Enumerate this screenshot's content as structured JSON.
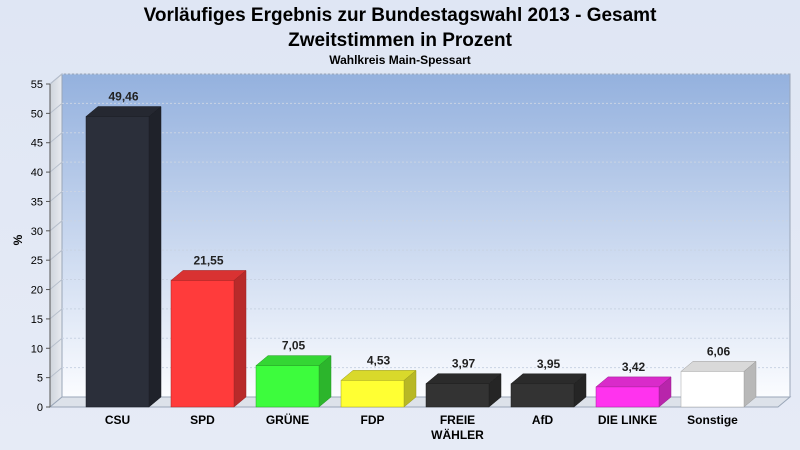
{
  "chart_data": {
    "type": "bar",
    "title": "Vorläufiges Ergebnis zur Bundestagswahl 2013 - Gesamt",
    "title_line2": "Zweitstimmen in Prozent",
    "subtitle": "Wahlkreis Main-Spessart",
    "ylabel": "%",
    "xlabel": "",
    "ylim": [
      0,
      55
    ],
    "yticks": [
      "0",
      "5",
      "10",
      "15",
      "20",
      "25",
      "30",
      "35",
      "40",
      "45",
      "50",
      "55"
    ],
    "grid": true,
    "categories": [
      [
        "CSU"
      ],
      [
        "SPD"
      ],
      [
        "GRÜNE"
      ],
      [
        "FDP"
      ],
      [
        "FREIE",
        "WÄHLER"
      ],
      [
        "AfD"
      ],
      [
        "DIE LINKE"
      ],
      [
        "Sonstige"
      ]
    ],
    "values": [
      49.46,
      21.55,
      7.05,
      4.53,
      3.97,
      3.95,
      3.42,
      6.06
    ],
    "value_labels": [
      "49,46",
      "21,55",
      "7,05",
      "4,53",
      "3,97",
      "3,95",
      "3,42",
      "6,06"
    ],
    "colors": [
      "#2b2f3a",
      "#ff3b3b",
      "#3dfc3d",
      "#ffff33",
      "#333333",
      "#333333",
      "#ff33ee",
      "#ffffff"
    ]
  }
}
